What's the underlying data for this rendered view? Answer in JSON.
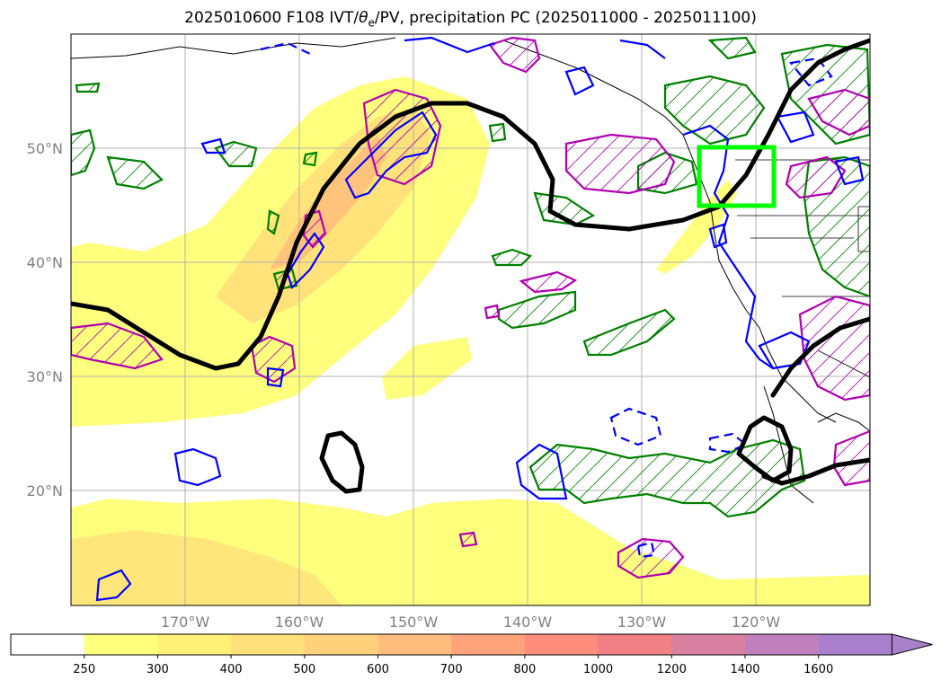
{
  "title": {
    "pre": "2025010600 F108 IVT/",
    "theta": "θ",
    "sub": "e",
    "post": "/PV, precipitation PC (2025011000 - 2025011100)"
  },
  "lat_labels": [
    "50°N",
    "40°N",
    "30°N",
    "20°N"
  ],
  "lon_labels": [
    "170°W",
    "160°W",
    "150°W",
    "140°W",
    "130°W",
    "120°W"
  ],
  "colorbar": {
    "levels": [
      "250",
      "300",
      "400",
      "500",
      "600",
      "700",
      "800",
      "1000",
      "1200",
      "1400",
      "1600"
    ],
    "colors": [
      "#ffffff",
      "#ffff7e",
      "#fff178",
      "#ffe07a",
      "#ffd17a",
      "#ffbd7d",
      "#ffa37a",
      "#ff8c7c",
      "#f07f86",
      "#d97f9f",
      "#c080bd",
      "#a880cc"
    ]
  },
  "colors": {
    "ivt_fill": "#ffff7e",
    "theta_contour": "#000000",
    "pv_contour": "#0000ff",
    "pc_positive": "#008000",
    "pc_negative": "#b000b0",
    "highlight_box": "#00ff00"
  }
}
